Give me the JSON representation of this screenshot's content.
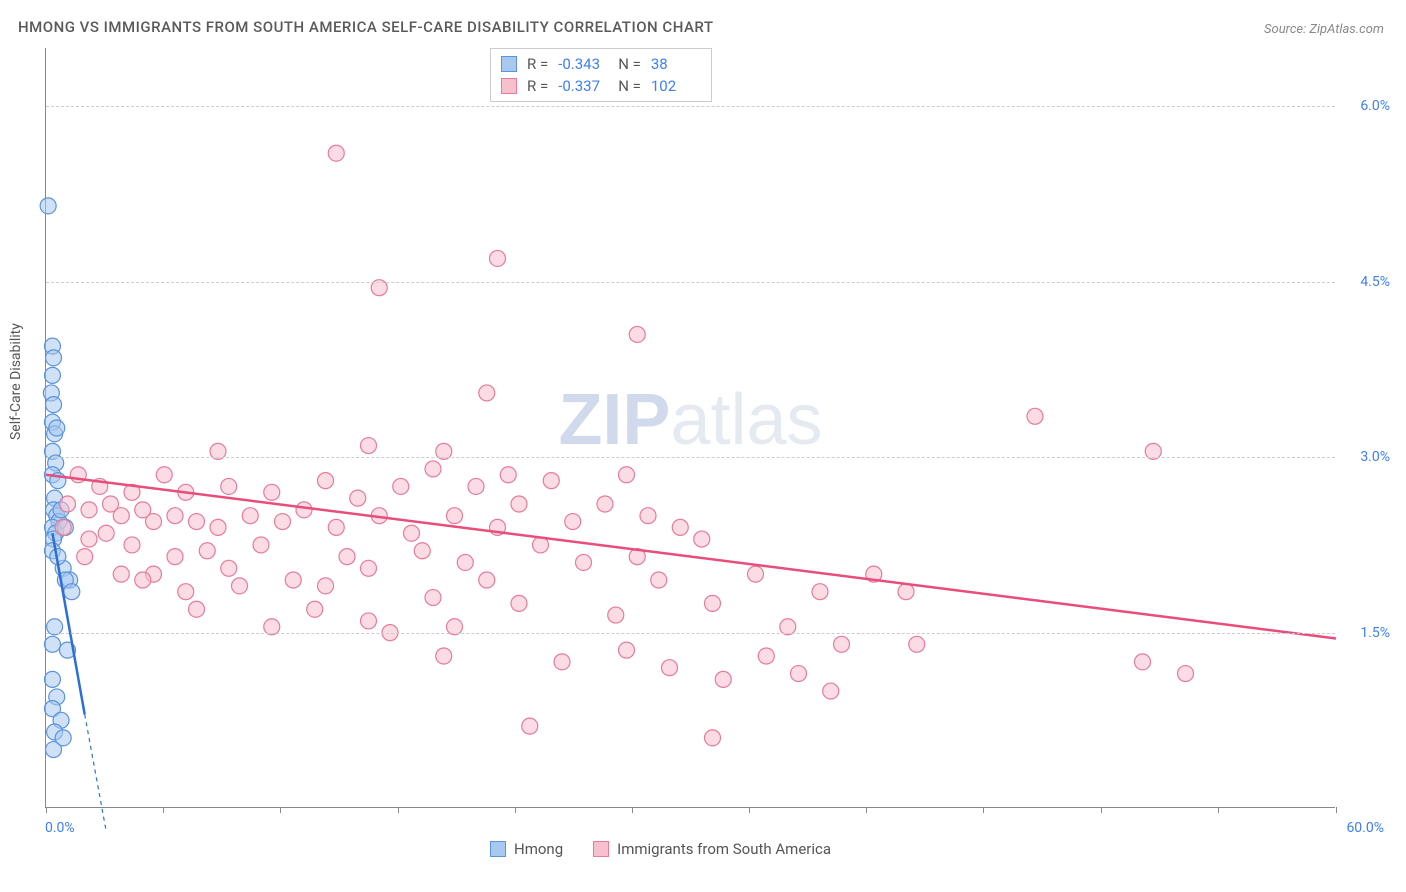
{
  "title": "HMONG VS IMMIGRANTS FROM SOUTH AMERICA SELF-CARE DISABILITY CORRELATION CHART",
  "source": "Source: ZipAtlas.com",
  "ylabel": "Self-Care Disability",
  "watermark_bold": "ZIP",
  "watermark_light": "atlas",
  "chart": {
    "type": "scatter",
    "xlim": [
      0,
      60
    ],
    "ylim": [
      0,
      6.5
    ],
    "x_tick_min": "0.0%",
    "x_tick_max": "60.0%",
    "y_ticks": [
      {
        "v": 1.5,
        "label": "1.5%"
      },
      {
        "v": 3.0,
        "label": "3.0%"
      },
      {
        "v": 4.5,
        "label": "4.5%"
      },
      {
        "v": 6.0,
        "label": "6.0%"
      }
    ],
    "x_minor_ticks": [
      0,
      5.45,
      10.9,
      16.35,
      21.8,
      27.25,
      32.7,
      38.15,
      43.6,
      49.05,
      54.5,
      60
    ],
    "background_color": "#ffffff",
    "grid_color": "#cccccc",
    "axis_color": "#888888",
    "marker_radius": 8,
    "marker_opacity": 0.55,
    "line_width": 2.5
  },
  "series": {
    "hmong": {
      "label": "Hmong",
      "color_fill": "#a8c8ef",
      "color_stroke": "#5b93dd",
      "line_color": "#2d6fd6",
      "R": "-0.343",
      "N": "38",
      "trend": {
        "x1": 0.3,
        "y1": 2.35,
        "x2": 1.8,
        "y2": 0.8,
        "dash_x2": 2.8,
        "dash_y2": -0.2
      },
      "points": [
        [
          0.1,
          5.15
        ],
        [
          0.3,
          3.95
        ],
        [
          0.35,
          3.85
        ],
        [
          0.3,
          3.7
        ],
        [
          0.25,
          3.55
        ],
        [
          0.35,
          3.45
        ],
        [
          0.3,
          3.3
        ],
        [
          0.4,
          3.2
        ],
        [
          0.5,
          3.25
        ],
        [
          0.3,
          3.05
        ],
        [
          0.45,
          2.95
        ],
        [
          0.3,
          2.85
        ],
        [
          0.55,
          2.8
        ],
        [
          0.4,
          2.65
        ],
        [
          0.35,
          2.55
        ],
        [
          0.5,
          2.5
        ],
        [
          0.6,
          2.45
        ],
        [
          0.7,
          2.55
        ],
        [
          0.3,
          2.4
        ],
        [
          0.45,
          2.35
        ],
        [
          0.35,
          2.3
        ],
        [
          0.9,
          2.4
        ],
        [
          0.3,
          2.2
        ],
        [
          0.8,
          2.05
        ],
        [
          1.1,
          1.95
        ],
        [
          0.9,
          1.95
        ],
        [
          1.2,
          1.85
        ],
        [
          0.4,
          1.55
        ],
        [
          0.3,
          1.4
        ],
        [
          1.0,
          1.35
        ],
        [
          0.3,
          1.1
        ],
        [
          0.5,
          0.95
        ],
        [
          0.3,
          0.85
        ],
        [
          0.7,
          0.75
        ],
        [
          0.4,
          0.65
        ],
        [
          0.35,
          0.5
        ],
        [
          0.8,
          0.6
        ],
        [
          0.55,
          2.15
        ]
      ]
    },
    "immigrants": {
      "label": "Immigrants from South America",
      "color_fill": "#f7c0cd",
      "color_stroke": "#e87a9a",
      "line_color": "#e84d7c",
      "R": "-0.337",
      "N": "102",
      "trend": {
        "x1": 0,
        "y1": 2.85,
        "x2": 60,
        "y2": 1.45
      },
      "points": [
        [
          13.5,
          5.6
        ],
        [
          21.0,
          4.7
        ],
        [
          15.5,
          4.45
        ],
        [
          27.5,
          4.05
        ],
        [
          20.5,
          3.55
        ],
        [
          46.0,
          3.35
        ],
        [
          8.0,
          3.05
        ],
        [
          15.0,
          3.1
        ],
        [
          18.5,
          3.05
        ],
        [
          18.0,
          2.9
        ],
        [
          51.5,
          3.05
        ],
        [
          1.5,
          2.85
        ],
        [
          5.5,
          2.85
        ],
        [
          2.5,
          2.75
        ],
        [
          4.0,
          2.7
        ],
        [
          6.5,
          2.7
        ],
        [
          8.5,
          2.75
        ],
        [
          10.5,
          2.7
        ],
        [
          13.0,
          2.8
        ],
        [
          16.5,
          2.75
        ],
        [
          20.0,
          2.75
        ],
        [
          23.5,
          2.8
        ],
        [
          26.0,
          2.6
        ],
        [
          27.0,
          2.85
        ],
        [
          21.5,
          2.85
        ],
        [
          1.0,
          2.6
        ],
        [
          2.0,
          2.55
        ],
        [
          3.0,
          2.6
        ],
        [
          3.5,
          2.5
        ],
        [
          4.5,
          2.55
        ],
        [
          5.0,
          2.45
        ],
        [
          6.0,
          2.5
        ],
        [
          7.0,
          2.45
        ],
        [
          8.0,
          2.4
        ],
        [
          9.5,
          2.5
        ],
        [
          11.0,
          2.45
        ],
        [
          12.0,
          2.55
        ],
        [
          13.5,
          2.4
        ],
        [
          15.5,
          2.5
        ],
        [
          17.0,
          2.35
        ],
        [
          19.0,
          2.5
        ],
        [
          21.0,
          2.4
        ],
        [
          24.5,
          2.45
        ],
        [
          28.0,
          2.5
        ],
        [
          29.5,
          2.4
        ],
        [
          2.0,
          2.3
        ],
        [
          4.0,
          2.25
        ],
        [
          7.5,
          2.2
        ],
        [
          10.0,
          2.25
        ],
        [
          14.0,
          2.15
        ],
        [
          17.5,
          2.2
        ],
        [
          23.0,
          2.25
        ],
        [
          27.5,
          2.15
        ],
        [
          15.0,
          2.05
        ],
        [
          19.5,
          2.1
        ],
        [
          25.0,
          2.1
        ],
        [
          5.0,
          2.0
        ],
        [
          11.5,
          1.95
        ],
        [
          20.5,
          1.95
        ],
        [
          28.5,
          1.95
        ],
        [
          30.5,
          2.3
        ],
        [
          33.0,
          2.0
        ],
        [
          36.0,
          1.85
        ],
        [
          38.5,
          2.0
        ],
        [
          18.0,
          1.8
        ],
        [
          22.0,
          1.75
        ],
        [
          31.0,
          1.75
        ],
        [
          34.5,
          1.55
        ],
        [
          12.5,
          1.7
        ],
        [
          26.5,
          1.65
        ],
        [
          40.0,
          1.85
        ],
        [
          51.0,
          1.25
        ],
        [
          53.0,
          1.15
        ],
        [
          29.0,
          1.2
        ],
        [
          31.5,
          1.1
        ],
        [
          33.5,
          1.3
        ],
        [
          35.0,
          1.15
        ],
        [
          37.0,
          1.4
        ],
        [
          24.0,
          1.25
        ],
        [
          18.5,
          1.3
        ],
        [
          40.5,
          1.4
        ],
        [
          22.5,
          0.7
        ],
        [
          31.0,
          0.6
        ],
        [
          16.0,
          1.5
        ],
        [
          9.0,
          1.9
        ],
        [
          6.5,
          1.85
        ],
        [
          13.0,
          1.9
        ],
        [
          3.5,
          2.0
        ],
        [
          1.8,
          2.15
        ],
        [
          0.8,
          2.4
        ],
        [
          2.8,
          2.35
        ],
        [
          6.0,
          2.15
        ],
        [
          8.5,
          2.05
        ],
        [
          14.5,
          2.65
        ],
        [
          22.0,
          2.6
        ],
        [
          19.0,
          1.55
        ],
        [
          27.0,
          1.35
        ],
        [
          36.5,
          1.0
        ],
        [
          15.0,
          1.6
        ],
        [
          10.5,
          1.55
        ],
        [
          4.5,
          1.95
        ],
        [
          7.0,
          1.7
        ]
      ]
    }
  }
}
